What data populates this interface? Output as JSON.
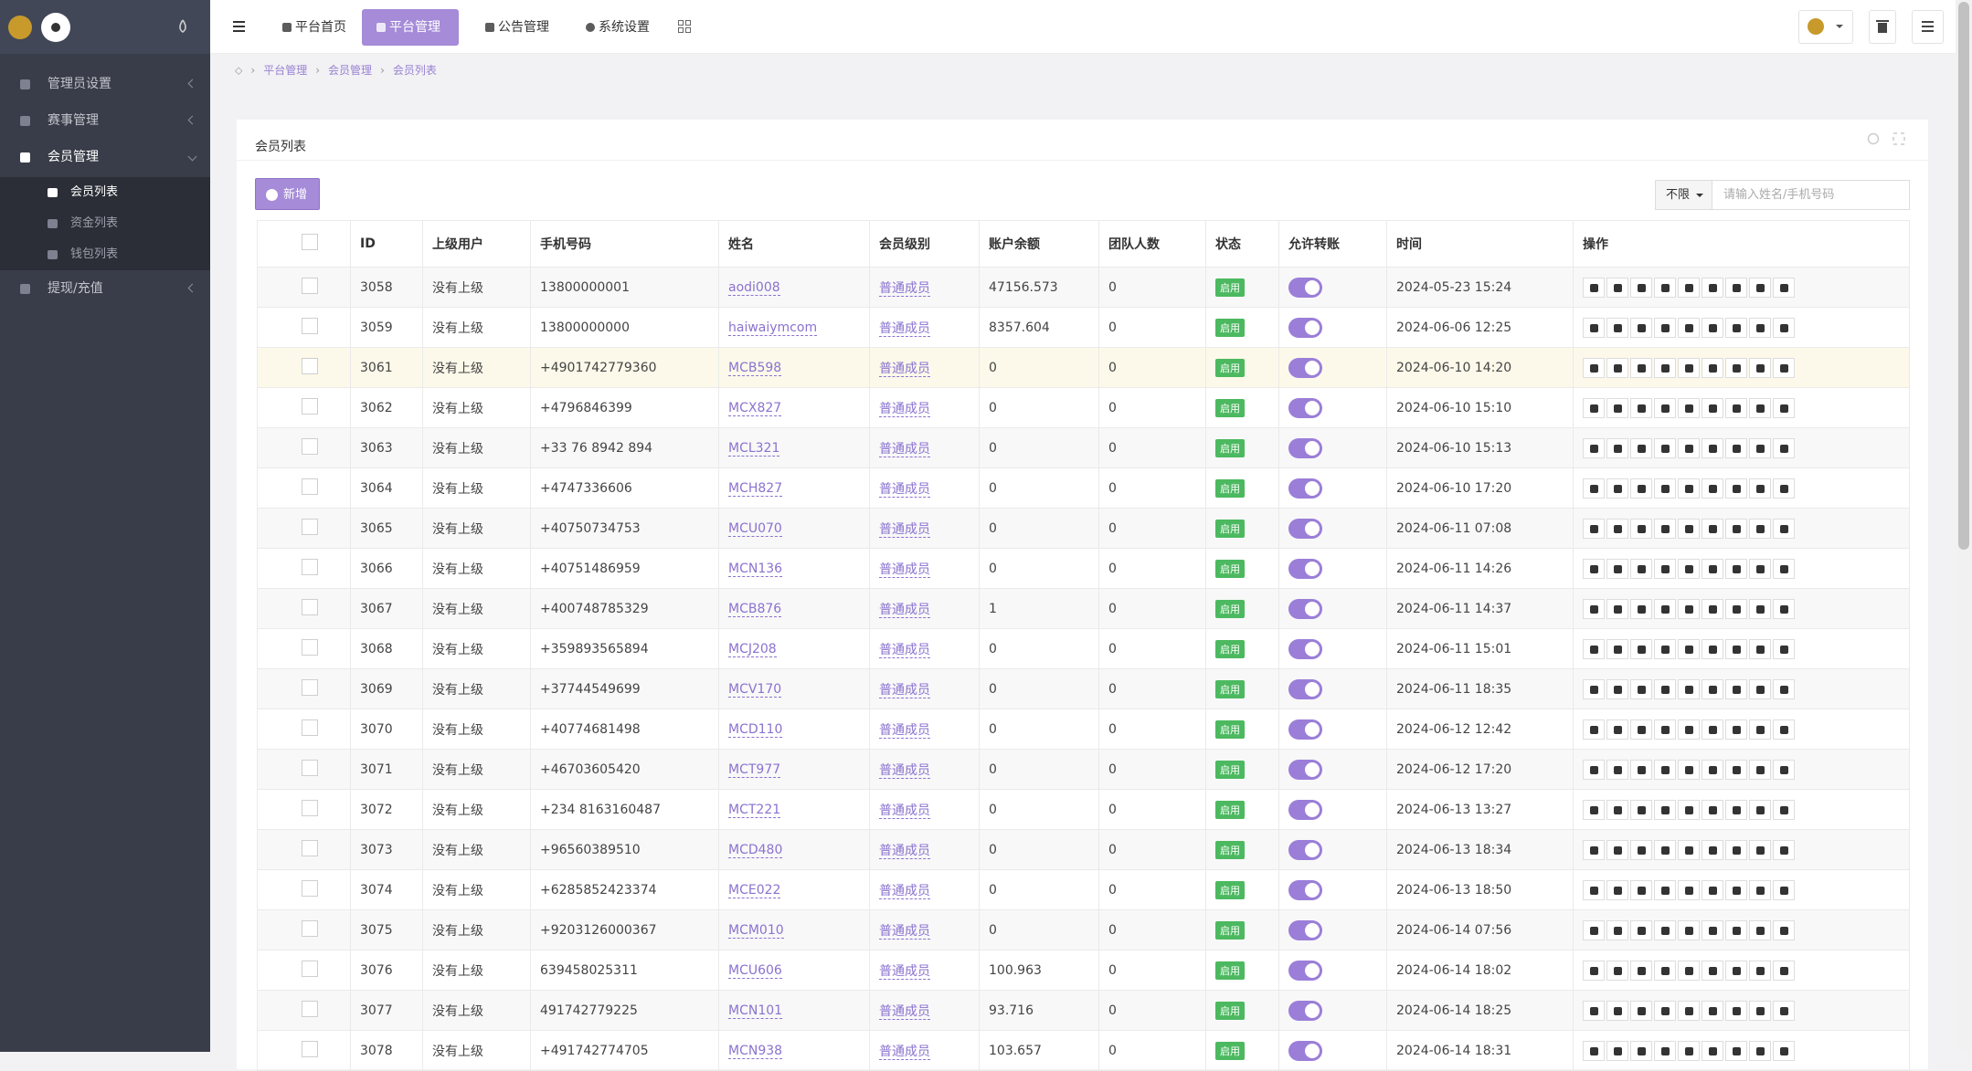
{
  "sidebar": {
    "menu": [
      {
        "label": "管理员设置"
      },
      {
        "label": "赛事管理"
      },
      {
        "label": "会员管理",
        "children": [
          "会员列表",
          "资金列表",
          "钱包列表"
        ]
      },
      {
        "label": "提现/充值"
      }
    ]
  },
  "topnav": {
    "tabs": [
      "平台首页",
      "平台管理",
      "公告管理",
      "系统设置"
    ]
  },
  "breadcrumb": [
    "平台管理",
    "会员管理",
    "会员列表"
  ],
  "panel": {
    "title": "会员列表",
    "add_button": "新增",
    "filter": "不限",
    "search_placeholder": "请输入姓名/手机号码"
  },
  "table": {
    "columns": [
      "ID",
      "上级用户",
      "手机号码",
      "姓名",
      "会员级别",
      "账户余额",
      "团队人数",
      "状态",
      "允许转账",
      "时间",
      "操作"
    ],
    "rows": [
      [
        "3058",
        "没有上级",
        "13800000001",
        "aodi008",
        "普通成员",
        "47156.573",
        "0",
        "启用",
        "2024-05-23 15:24"
      ],
      [
        "3059",
        "没有上级",
        "13800000000",
        "haiwaiymcom",
        "普通成员",
        "8357.604",
        "0",
        "启用",
        "2024-06-06 12:25"
      ],
      [
        "3061",
        "没有上级",
        "+4901742779360",
        "MCB598",
        "普通成员",
        "0",
        "0",
        "启用",
        "2024-06-10 14:20"
      ],
      [
        "3062",
        "没有上级",
        "+4796846399",
        "MCX827",
        "普通成员",
        "0",
        "0",
        "启用",
        "2024-06-10 15:10"
      ],
      [
        "3063",
        "没有上级",
        "+33 76 8942 894",
        "MCL321",
        "普通成员",
        "0",
        "0",
        "启用",
        "2024-06-10 15:13"
      ],
      [
        "3064",
        "没有上级",
        "+4747336606",
        "MCH827",
        "普通成员",
        "0",
        "0",
        "启用",
        "2024-06-10 17:20"
      ],
      [
        "3065",
        "没有上级",
        "+40750734753",
        "MCU070",
        "普通成员",
        "0",
        "0",
        "启用",
        "2024-06-11 07:08"
      ],
      [
        "3066",
        "没有上级",
        "+40751486959",
        "MCN136",
        "普通成员",
        "0",
        "0",
        "启用",
        "2024-06-11 14:26"
      ],
      [
        "3067",
        "没有上级",
        "+400748785329",
        "MCB876",
        "普通成员",
        "1",
        "0",
        "启用",
        "2024-06-11 14:37"
      ],
      [
        "3068",
        "没有上级",
        "+359893565894",
        "MCJ208",
        "普通成员",
        "0",
        "0",
        "启用",
        "2024-06-11 15:01"
      ],
      [
        "3069",
        "没有上级",
        "+37744549699",
        "MCV170",
        "普通成员",
        "0",
        "0",
        "启用",
        "2024-06-11 18:35"
      ],
      [
        "3070",
        "没有上级",
        "+40774681498",
        "MCD110",
        "普通成员",
        "0",
        "0",
        "启用",
        "2024-06-12 12:42"
      ],
      [
        "3071",
        "没有上级",
        "+46703605420",
        "MCT977",
        "普通成员",
        "0",
        "0",
        "启用",
        "2024-06-12 17:20"
      ],
      [
        "3072",
        "没有上级",
        "+234 8163160487",
        "MCT221",
        "普通成员",
        "0",
        "0",
        "启用",
        "2024-06-13 13:27"
      ],
      [
        "3073",
        "没有上级",
        "+96560389510",
        "MCD480",
        "普通成员",
        "0",
        "0",
        "启用",
        "2024-06-13 18:34"
      ],
      [
        "3074",
        "没有上级",
        "+6285852423374",
        "MCE022",
        "普通成员",
        "0",
        "0",
        "启用",
        "2024-06-13 18:50"
      ],
      [
        "3075",
        "没有上级",
        "+9203126000367",
        "MCM010",
        "普通成员",
        "0",
        "0",
        "启用",
        "2024-06-14 07:56"
      ],
      [
        "3076",
        "没有上级",
        "639458025311",
        "MCU606",
        "普通成员",
        "100.963",
        "0",
        "启用",
        "2024-06-14 18:02"
      ],
      [
        "3077",
        "没有上级",
        "491742779225",
        "MCN101",
        "普通成员",
        "93.716",
        "0",
        "启用",
        "2024-06-14 18:25"
      ],
      [
        "3078",
        "没有上级",
        "+491742774705",
        "MCN938",
        "普通成员",
        "103.657",
        "0",
        "启用",
        "2024-06-14 18:31"
      ]
    ]
  }
}
